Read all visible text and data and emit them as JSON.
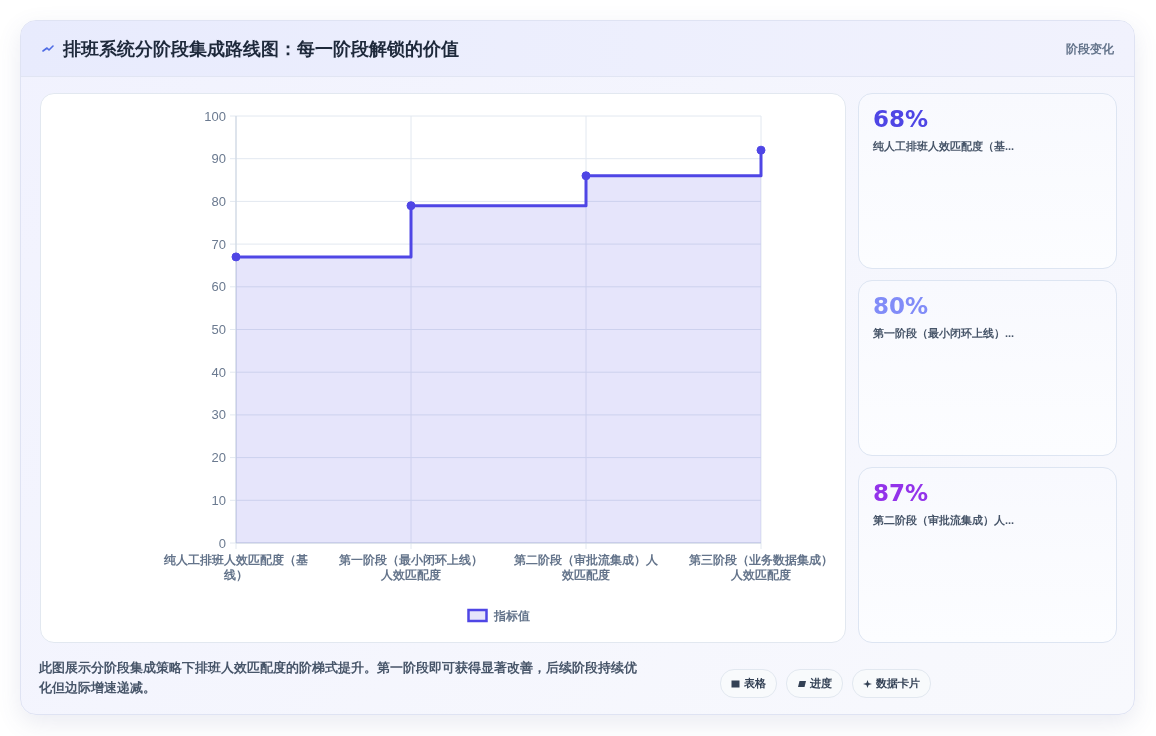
{
  "chart_data": [
    {
      "type": "step",
      "title": "排班系统分阶段集成路线图：每一阶段解锁的价值",
      "categories": [
        "纯人工排班人效匹配度（基线）",
        "第一阶段（最小闭环上线）人效匹配度",
        "第二阶段（审批流集成）人效匹配度",
        "第三阶段（业务数据集成）人效匹配度"
      ],
      "series": [
        {
          "name": "指标值",
          "color": "#4f46e5",
          "values": [
            67,
            79,
            86,
            92
          ]
        }
      ],
      "ylim": [
        0,
        100
      ],
      "yticks": [
        0,
        10,
        20,
        30,
        40,
        50,
        60,
        70,
        80,
        90,
        100
      ],
      "grid": true,
      "legend": "bottom",
      "marker": "circle",
      "annotations": [
        "此图展示分阶段集成策略下排班人效匹配度的阶梯式提升。第一阶段即可获得显著改善，后续阶段持续优化但边际增速递减。",
        "表格",
        "进度",
        "数据卡片"
      ]
    },
    {
      "type": "other",
      "title": "阶段变化",
      "annotations": [
        "68%",
        "纯人工排班人效匹配度（基...",
        "80%",
        "第一阶段（最小闭环上线）...",
        "87%",
        "第二阶段（审批流集成）人..."
      ]
    }
  ]
}
